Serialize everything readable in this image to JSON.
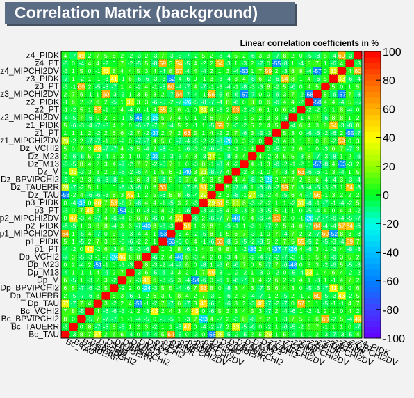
{
  "chart_data": {
    "type": "heatmap",
    "title": "Correlation Matrix (background)",
    "subtitle": "Linear correlation coefficients in %",
    "variables": [
      "Bc_TAU",
      "Bc_TAUERR",
      "Bc_BPVIPCHI2",
      "Bc_VCHI2",
      "Dp_TAU",
      "Dp_TAUERR",
      "Dp_BPVIPCHI2",
      "Dp_M",
      "Dp_M13",
      "Dp_M23",
      "Dp_VCHI2",
      "p1_PT",
      "p1_PIDK",
      "p1_MIPCHI2DV",
      "p2_PIDK",
      "p2_MIPCHI2DV",
      "p3_PT",
      "p3_PIDK",
      "Dz_TAU",
      "Dz_TAUERR",
      "Dz_BPVIPCHI2",
      "Dz_M",
      "Dz_M13",
      "Dz_M23",
      "Dz_VCHI2",
      "z1_MIPCHI2DV",
      "z1_PT",
      "z1_PIDK",
      "z2_MIPCHI2DV",
      "z2_PT",
      "z2_PIDK",
      "z3_MIPCHI2DV",
      "z3_PT",
      "z3_PIDK",
      "z4_MIPCHI2DV",
      "z4_PT",
      "z4_PIDK"
    ],
    "y_tick_labels": [
      "Bc_TAU",
      "Bc_TAUERR",
      "Bc_BPVIPCHI2",
      "Bc_VCHI2",
      "Dp_TAU",
      "Dp_TAUERR",
      "Dp_BPVIPCHI2",
      "Dp_M",
      "Dp_M13",
      "Dp_M23",
      "Dp_VCHI2",
      "p1_PT",
      "p1_PIDK",
      "p1_MIPCHI2DV",
      "p2_PIDK",
      "p2_MIPCHI2DV",
      "p3_PT",
      "p3_PIDK",
      "Dz_TAU",
      "Dz_TAUERR",
      "Dz_BPVIPCHI2",
      "Dz_M",
      "Dz_M13",
      "Dz_M23",
      "Dz_VCHI2",
      "z1_MIPCHI2DV",
      "z1_PT",
      "z1_PIDK",
      "z2_MIPCHI2DV",
      "z2_PT",
      "z2_PIDK",
      "z3_MIPCHI2DV",
      "z3_PT",
      "z3_PIDK",
      "z4_MIPCHI2DV",
      "z4_PT",
      "z4_PIDK"
    ],
    "zlim": [
      -100,
      100
    ],
    "colorbar_ticks": [
      100,
      80,
      60,
      40,
      20,
      0,
      -20,
      -40,
      -60,
      -80,
      -100
    ],
    "diagonal_value": 100,
    "off_diagonal": "mostly small values between -10 and 10, several cells between 20 and 70",
    "grid": true
  }
}
